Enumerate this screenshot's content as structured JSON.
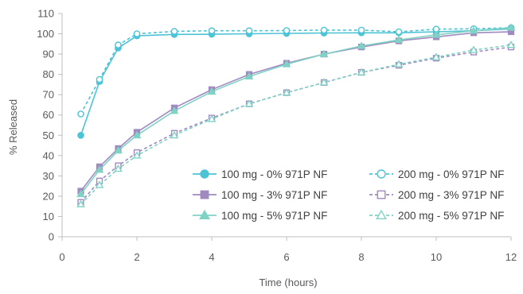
{
  "chart_data": {
    "type": "line",
    "xlabel": "Time (hours)",
    "ylabel": "% Released",
    "xlim": [
      0,
      12
    ],
    "ylim": [
      0,
      110
    ],
    "xticks": [
      0,
      2,
      4,
      6,
      8,
      10,
      12
    ],
    "yticks": [
      0,
      10,
      20,
      30,
      40,
      50,
      60,
      70,
      80,
      90,
      100,
      110
    ],
    "grid": false,
    "legend_position": "bottom-right",
    "series": [
      {
        "name": "100 mg  - 0% 971P NF",
        "color": "#4DC3D6",
        "marker": "circle",
        "filled": true,
        "dashed": false,
        "x": [
          0.5,
          1,
          1.5,
          2,
          3,
          4,
          5,
          6,
          7,
          8,
          9,
          10,
          11,
          12
        ],
        "y": [
          50,
          76.5,
          93,
          99,
          99.7,
          99.8,
          100,
          100.2,
          100.4,
          100.5,
          100.5,
          101,
          101.5,
          102.5
        ]
      },
      {
        "name": "200 mg  - 0% 971P NF",
        "color": "#4DC3D6",
        "marker": "circle",
        "filled": false,
        "dashed": true,
        "x": [
          0.5,
          1,
          1.5,
          2,
          3,
          4,
          5,
          6,
          7,
          8,
          9,
          10,
          11,
          12
        ],
        "y": [
          60.5,
          77.5,
          94.5,
          100,
          101.2,
          101.5,
          101.5,
          101.6,
          101.8,
          101.8,
          101,
          102.3,
          102.5,
          103
        ]
      },
      {
        "name": "100 mg  - 3% 971P NF",
        "color": "#A08AC0",
        "marker": "square",
        "filled": true,
        "dashed": false,
        "x": [
          0.5,
          1,
          1.5,
          2,
          3,
          4,
          5,
          6,
          7,
          8,
          9,
          10,
          11,
          12
        ],
        "y": [
          22.5,
          34.5,
          43.5,
          51.5,
          63.5,
          72.5,
          80,
          85.5,
          90,
          93.5,
          96.5,
          98.5,
          100.5,
          101
        ]
      },
      {
        "name": "200 mg  - 3% 971P NF",
        "color": "#A08AC0",
        "marker": "square",
        "filled": false,
        "dashed": true,
        "x": [
          0.5,
          1,
          1.5,
          2,
          3,
          4,
          5,
          6,
          7,
          8,
          9,
          10,
          11,
          12
        ],
        "y": [
          17,
          27.5,
          35,
          41.5,
          51,
          58.5,
          65.5,
          71,
          76,
          81,
          84.5,
          88,
          91,
          93.5
        ]
      },
      {
        "name": "100 mg  - 5% 971P NF",
        "color": "#7FD3C4",
        "marker": "triangle",
        "filled": true,
        "dashed": false,
        "x": [
          0.5,
          1,
          1.5,
          2,
          3,
          4,
          5,
          6,
          7,
          8,
          9,
          10,
          11,
          12
        ],
        "y": [
          21,
          33,
          42.5,
          50,
          62,
          71.5,
          79,
          85,
          90,
          94,
          97,
          99.5,
          101.5,
          103
        ]
      },
      {
        "name": "200 mg  - 5% 971P NF",
        "color": "#7FD3C4",
        "marker": "triangle",
        "filled": false,
        "dashed": true,
        "x": [
          0.5,
          1,
          1.5,
          2,
          3,
          4,
          5,
          6,
          7,
          8,
          9,
          10,
          11,
          12
        ],
        "y": [
          16,
          25.5,
          33.5,
          40,
          50,
          58,
          65.5,
          71,
          76,
          81,
          85,
          88.5,
          92,
          94.5
        ]
      }
    ]
  }
}
